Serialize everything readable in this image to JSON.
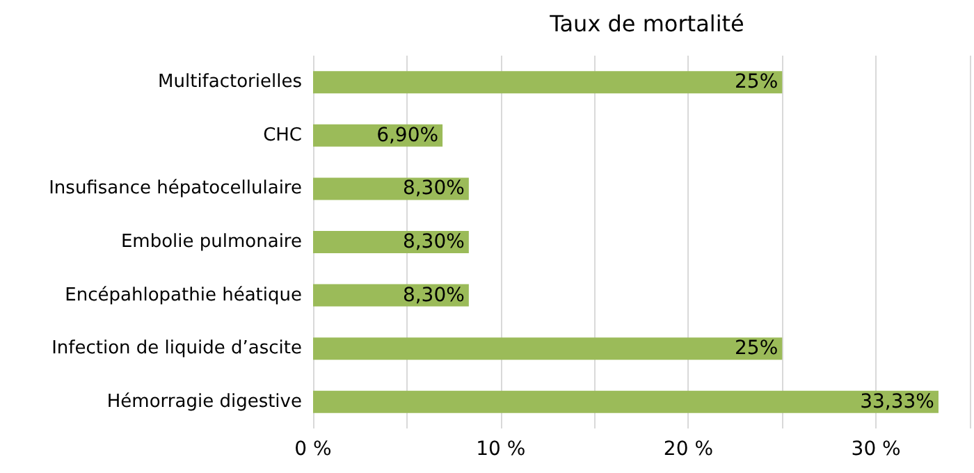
{
  "chart_data": {
    "type": "bar",
    "orientation": "horizontal",
    "title": "Taux de mortalité",
    "categories": [
      "Multifactorielles",
      "CHC",
      "Insufisance hépatocellulaire",
      "Embolie pulmonaire",
      "Encépahlopathie héatique",
      "Infection de liquide d’ascite",
      "Hémorragie digestive"
    ],
    "values": [
      25,
      6.9,
      8.3,
      8.3,
      8.3,
      25,
      33.33
    ],
    "value_labels": [
      "25%",
      "6,90%",
      "8,30%",
      "8,30%",
      "8,30%",
      "25%",
      "33,33%"
    ],
    "color": "#9bbb59",
    "xlim": [
      0,
      35
    ],
    "xticks": [
      {
        "value": 0,
        "label": "0 %"
      },
      {
        "value": 5,
        "label": null
      },
      {
        "value": 10,
        "label": "10 %"
      },
      {
        "value": 15,
        "label": null
      },
      {
        "value": 20,
        "label": "20 %"
      },
      {
        "value": 25,
        "label": null
      },
      {
        "value": 30,
        "label": "30 %"
      },
      {
        "value": 35,
        "label": null
      }
    ],
    "grid": "x"
  }
}
